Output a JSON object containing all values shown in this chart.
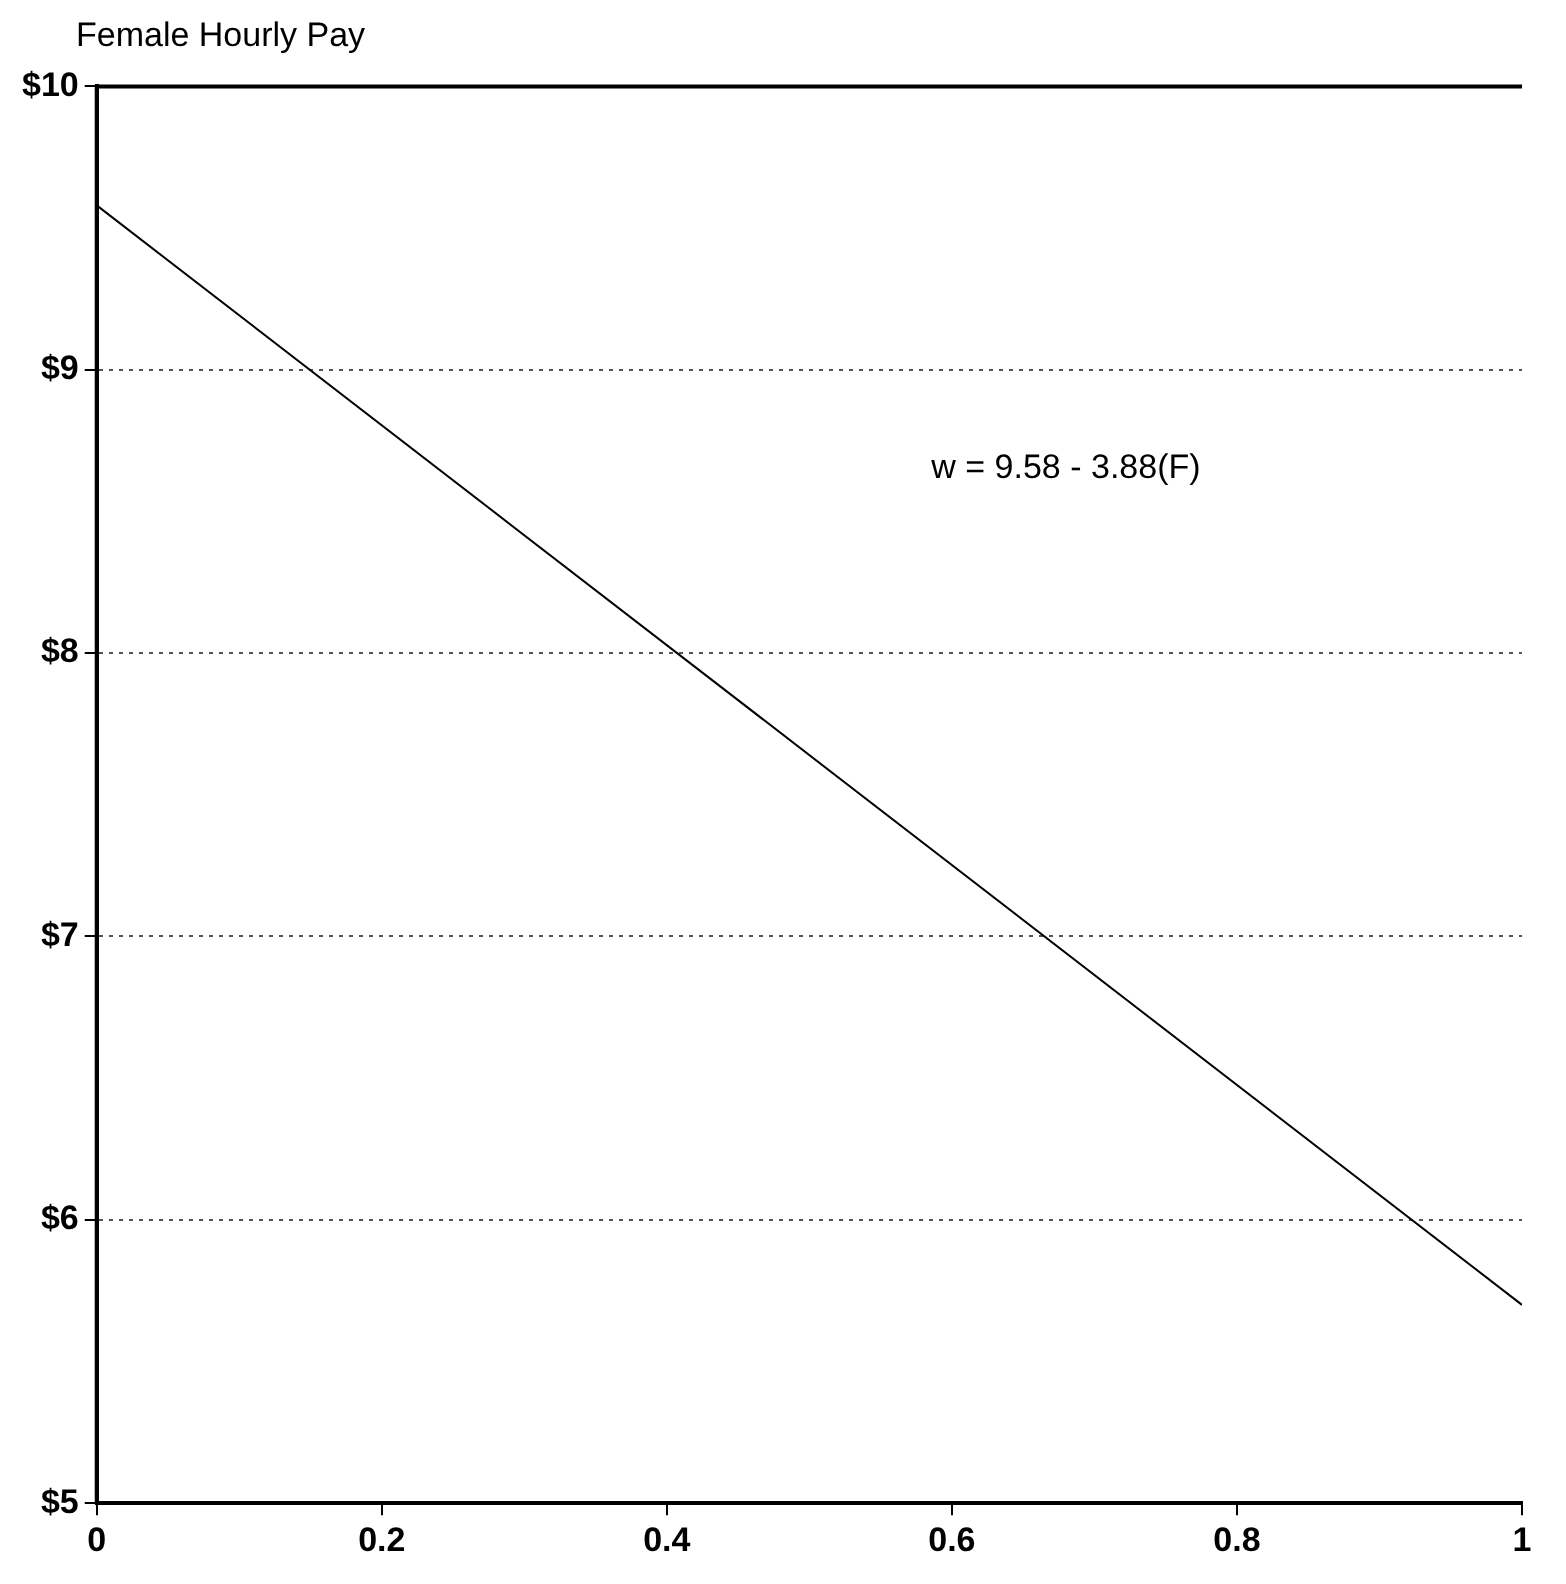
{
  "chart_data": {
    "type": "line",
    "ylabel": "Female Hourly Pay",
    "annotations": [
      "w = 9.58 - 3.88(F)"
    ],
    "x": [
      0,
      1
    ],
    "series": [
      {
        "color": "#000000",
        "values": [
          9.58,
          5.7
        ]
      }
    ],
    "xlim": [
      0,
      1
    ],
    "xticks": [
      0,
      0.2,
      0.4,
      0.6,
      0.8,
      1
    ],
    "ylim": [
      5,
      10
    ],
    "yticks": [
      {
        "value": 5,
        "label": "$5"
      },
      {
        "value": 6,
        "label": "$6"
      },
      {
        "value": 7,
        "label": "$7"
      },
      {
        "value": 8,
        "label": "$8"
      },
      {
        "value": 9,
        "label": "$9"
      },
      {
        "value": 10,
        "label": "$10"
      }
    ],
    "grid": "y",
    "legend": false,
    "marker": "none",
    "line_style": "solid"
  }
}
